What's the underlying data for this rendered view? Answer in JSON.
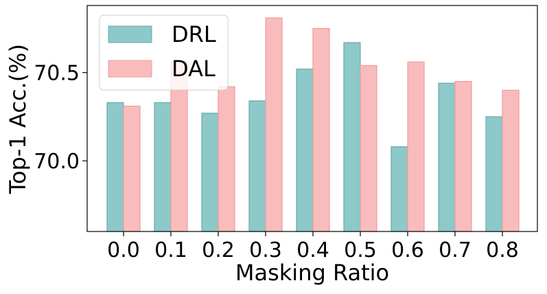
{
  "chart_data": {
    "type": "bar",
    "xlabel": "Masking Ratio",
    "ylabel": "Top-1 Acc.(%)",
    "categories": [
      "0.0",
      "0.1",
      "0.2",
      "0.3",
      "0.4",
      "0.5",
      "0.6",
      "0.7",
      "0.8"
    ],
    "series": [
      {
        "name": "DRL",
        "color": "#8cc9c8",
        "edge_color": "#6aabaa",
        "values": [
          70.33,
          70.33,
          70.27,
          70.34,
          70.52,
          70.67,
          70.08,
          70.44,
          70.25
        ]
      },
      {
        "name": "DAL",
        "color": "#f9bcbc",
        "edge_color": "#f09a9a",
        "values": [
          70.31,
          70.56,
          70.42,
          70.81,
          70.75,
          70.54,
          70.56,
          70.45,
          70.4
        ]
      }
    ],
    "ylim": [
      69.6,
      70.88
    ],
    "yticks": [
      "70.0",
      "70.5"
    ],
    "ytick_values": [
      70.0,
      70.5
    ],
    "grid": false,
    "legend_position": "top-left"
  }
}
